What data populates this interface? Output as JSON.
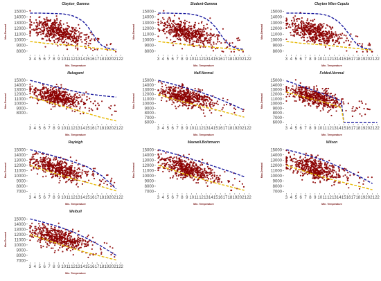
{
  "colors": {
    "points": "#8b0000",
    "upper_line": "#1a1a9e",
    "lower_line": "#e6b800",
    "axis": "#333333",
    "label": "#7a1a1a"
  },
  "chart_data": [
    {
      "type": "scatter",
      "title": "Clayton_Gamma",
      "xlabel": "Min. Temperature",
      "ylabel": "Max.Demand",
      "x_ticks": [
        3,
        4,
        5,
        6,
        7,
        8,
        9,
        10,
        11,
        12,
        13,
        14,
        15,
        16,
        17,
        18,
        19,
        20,
        21,
        22
      ],
      "y_ticks": [
        8000,
        9000,
        10000,
        11000,
        12000,
        13000,
        14000,
        15000
      ],
      "ylim": [
        7500,
        15300
      ],
      "xlim": [
        2.5,
        22.5
      ],
      "upper": {
        "x": [
          3,
          5,
          7,
          9,
          10,
          11,
          12,
          13,
          14,
          15,
          16,
          17,
          18,
          19,
          20,
          21
        ],
        "y": [
          14700,
          14700,
          14650,
          14600,
          14550,
          14400,
          14200,
          13800,
          13300,
          12400,
          11200,
          9900,
          9000,
          8600,
          8400,
          8300
        ]
      },
      "lower": {
        "x": [
          3,
          6,
          9,
          12,
          15,
          18,
          21
        ],
        "y": [
          9700,
          9400,
          9200,
          9000,
          8700,
          8400,
          8100
        ]
      },
      "grid": false
    },
    {
      "type": "scatter",
      "title": "Student-Gamma",
      "xlabel": "Min. Temperature",
      "ylabel": "Max.Demand",
      "x_ticks": [
        3,
        4,
        5,
        6,
        7,
        8,
        9,
        10,
        11,
        12,
        13,
        14,
        15,
        16,
        17,
        18,
        19,
        20,
        21,
        22
      ],
      "y_ticks": [
        8000,
        9000,
        10000,
        11000,
        12000,
        13000,
        14000,
        15000
      ],
      "ylim": [
        7500,
        15300
      ],
      "xlim": [
        2.5,
        22.5
      ],
      "upper": {
        "x": [
          3,
          5,
          7,
          9,
          10,
          11,
          12,
          13,
          14,
          15,
          16,
          17,
          18,
          19,
          20,
          21
        ],
        "y": [
          14700,
          14700,
          14650,
          14600,
          14500,
          14350,
          14100,
          13700,
          13100,
          12200,
          11000,
          9800,
          9000,
          8600,
          8400,
          8300
        ]
      },
      "lower": {
        "x": [
          3,
          6,
          9,
          12,
          15,
          18,
          21
        ],
        "y": [
          9700,
          9400,
          9100,
          8900,
          8650,
          8400,
          8150
        ]
      },
      "grid": false
    },
    {
      "type": "scatter",
      "title": "Clayton Wien Copula",
      "xlabel": "Min. Temperature",
      "ylabel": "Max.Demand",
      "x_ticks": [
        3,
        4,
        5,
        6,
        7,
        8,
        9,
        10,
        11,
        12,
        13,
        14,
        15,
        16,
        17,
        18,
        19,
        20,
        21,
        22
      ],
      "y_ticks": [
        8000,
        9000,
        10000,
        11000,
        12000,
        13000,
        14000,
        15000
      ],
      "ylim": [
        7500,
        15300
      ],
      "xlim": [
        2.5,
        22.5
      ],
      "upper": {
        "x": [
          3,
          5,
          7,
          9,
          10,
          11,
          12,
          13,
          14,
          15,
          16,
          17,
          18,
          19,
          20,
          21
        ],
        "y": [
          14700,
          14700,
          14650,
          14600,
          14550,
          14400,
          14150,
          13700,
          13100,
          12200,
          11100,
          9900,
          9000,
          8600,
          8400,
          8300
        ]
      },
      "lower": {
        "x": [
          3,
          6,
          9,
          12,
          15,
          18,
          21
        ],
        "y": [
          9700,
          9400,
          9200,
          9000,
          8700,
          8450,
          8150
        ]
      },
      "grid": false
    },
    {
      "type": "scatter",
      "title": "Nakagami",
      "xlabel": "Min. Temperature",
      "ylabel": "Max.Demand",
      "x_ticks": [
        3,
        4,
        5,
        6,
        7,
        8,
        9,
        10,
        11,
        12,
        13,
        14,
        15,
        16,
        17,
        18,
        19,
        20,
        21,
        22
      ],
      "y_ticks": [
        8000,
        9000,
        10000,
        11000,
        12000,
        13000,
        14000,
        15000
      ],
      "ylim": [
        5800,
        15300
      ],
      "xlim": [
        2.5,
        22.5
      ],
      "upper": {
        "x": [
          3,
          6,
          9,
          12,
          15,
          18,
          21
        ],
        "y": [
          15000,
          14200,
          13400,
          12700,
          12100,
          11700,
          11400
        ]
      },
      "lower": {
        "x": [
          3,
          6,
          9,
          12,
          15,
          18,
          21
        ],
        "y": [
          11500,
          10600,
          9700,
          8800,
          7900,
          7000,
          6300
        ]
      },
      "grid": false
    },
    {
      "type": "scatter",
      "title": "Half.Normal",
      "xlabel": "Min. Temperature",
      "ylabel": "Max.Demand",
      "x_ticks": [
        3,
        4,
        5,
        6,
        7,
        8,
        9,
        10,
        11,
        12,
        13,
        14,
        15,
        16,
        17,
        18,
        19,
        20,
        21,
        22
      ],
      "y_ticks": [
        6000,
        7000,
        8000,
        9000,
        10000,
        11000,
        12000,
        13000,
        14000,
        15000
      ],
      "ylim": [
        5800,
        15300
      ],
      "xlim": [
        2.5,
        22.5
      ],
      "upper": {
        "x": [
          3,
          6,
          9,
          12,
          15,
          18,
          21
        ],
        "y": [
          15000,
          14200,
          13300,
          12400,
          11300,
          10000,
          8600
        ]
      },
      "lower": {
        "x": [
          3,
          6,
          9,
          12,
          15,
          18,
          21
        ],
        "y": [
          12000,
          11000,
          10200,
          9400,
          8700,
          7900,
          7100
        ]
      },
      "grid": false
    },
    {
      "type": "scatter",
      "title": "Folded.Normal",
      "xlabel": "Min. Temperature",
      "ylabel": "Max.Demand",
      "x_ticks": [
        3,
        4,
        5,
        6,
        7,
        8,
        9,
        10,
        11,
        12,
        13,
        14,
        15,
        16,
        17,
        18,
        19,
        20,
        21,
        22
      ],
      "y_ticks": [
        6000,
        7000,
        8000,
        9000,
        10000,
        11000,
        12000,
        13000,
        14000,
        15000
      ],
      "ylim": [
        5800,
        15300
      ],
      "xlim": [
        2.5,
        22.5
      ],
      "upper": {
        "x": [
          3,
          6,
          9,
          12,
          14,
          14.5,
          15,
          15.5,
          22
        ],
        "y": [
          14900,
          13800,
          12700,
          11600,
          10800,
          10500,
          6000,
          6000,
          6000
        ]
      },
      "lower": {
        "x": [
          3,
          6,
          9,
          12,
          14,
          14.5,
          15
        ],
        "y": [
          12500,
          11600,
          10800,
          10000,
          9300,
          9000,
          6000
        ]
      },
      "grid": false
    },
    {
      "type": "scatter",
      "title": "Rayleigh",
      "xlabel": "Min. Temperature",
      "ylabel": "Max.Demand",
      "x_ticks": [
        3,
        4,
        5,
        6,
        7,
        8,
        9,
        10,
        11,
        12,
        13,
        14,
        15,
        16,
        17,
        18,
        19,
        20,
        21,
        22
      ],
      "y_ticks": [
        7000,
        8000,
        9000,
        10000,
        11000,
        12000,
        13000,
        14000,
        15000
      ],
      "ylim": [
        6800,
        15300
      ],
      "xlim": [
        2.5,
        22.5
      ],
      "upper": {
        "x": [
          3,
          6,
          9,
          12,
          15,
          18,
          21
        ],
        "y": [
          15000,
          14300,
          13500,
          12700,
          11700,
          10000,
          7500
        ]
      },
      "lower": {
        "x": [
          3,
          6,
          9,
          12,
          15,
          18,
          21
        ],
        "y": [
          12000,
          11100,
          10200,
          9400,
          8700,
          7900,
          7100
        ]
      },
      "grid": false
    },
    {
      "type": "scatter",
      "title": "Maxwell.Boltzmann",
      "xlabel": "Min. Temperature",
      "ylabel": "Max.Demand",
      "x_ticks": [
        3,
        4,
        5,
        6,
        7,
        8,
        9,
        10,
        11,
        12,
        13,
        14,
        15,
        16,
        17,
        18,
        19,
        20,
        21,
        22
      ],
      "y_ticks": [
        7000,
        8000,
        9000,
        10000,
        11000,
        12000,
        13000,
        14000,
        15000
      ],
      "ylim": [
        6800,
        15300
      ],
      "xlim": [
        2.5,
        22.5
      ],
      "upper": {
        "x": [
          3,
          6,
          9,
          12,
          15,
          18,
          21
        ],
        "y": [
          15000,
          14300,
          13500,
          12600,
          11700,
          10800,
          9800
        ]
      },
      "lower": {
        "x": [
          3,
          6,
          9,
          12,
          15,
          18,
          21
        ],
        "y": [
          12000,
          11100,
          10200,
          9400,
          8600,
          7900,
          7200
        ]
      },
      "grid": false
    },
    {
      "type": "scatter",
      "title": "Wilson",
      "xlabel": "Min. Temperature",
      "ylabel": "Max.Demand",
      "x_ticks": [
        3,
        4,
        5,
        6,
        7,
        8,
        9,
        10,
        11,
        12,
        13,
        14,
        15,
        16,
        17,
        18,
        19,
        20,
        21,
        22
      ],
      "y_ticks": [
        7000,
        8000,
        9000,
        10000,
        11000,
        12000,
        13000,
        14000,
        15000
      ],
      "ylim": [
        6800,
        15300
      ],
      "xlim": [
        2.5,
        22.5
      ],
      "upper": {
        "x": [
          3,
          6,
          9,
          12,
          15,
          18,
          21
        ],
        "y": [
          15000,
          14300,
          13500,
          12500,
          11300,
          10000,
          8500
        ]
      },
      "lower": {
        "x": [
          3,
          6,
          9,
          12,
          15,
          18,
          21
        ],
        "y": [
          12000,
          11100,
          10200,
          9400,
          8700,
          8000,
          7300
        ]
      },
      "grid": false
    },
    {
      "type": "scatter",
      "title": "Weibull",
      "xlabel": "Min. Temperature",
      "ylabel": "Max.Demand",
      "x_ticks": [
        3,
        4,
        5,
        6,
        7,
        8,
        9,
        10,
        11,
        12,
        13,
        14,
        15,
        16,
        17,
        18,
        19,
        20,
        21,
        22
      ],
      "y_ticks": [
        7000,
        8000,
        9000,
        10000,
        11000,
        12000,
        13000,
        14000,
        15000
      ],
      "ylim": [
        6800,
        15300
      ],
      "xlim": [
        2.5,
        22.5
      ],
      "upper": {
        "x": [
          3,
          6,
          9,
          12,
          15,
          18,
          21
        ],
        "y": [
          15000,
          14300,
          13500,
          12500,
          11200,
          9700,
          8000
        ]
      },
      "lower": {
        "x": [
          3,
          6,
          9,
          12,
          15,
          18,
          21
        ],
        "y": [
          12000,
          11100,
          10200,
          9300,
          8500,
          7800,
          7100
        ]
      },
      "grid": false
    }
  ]
}
